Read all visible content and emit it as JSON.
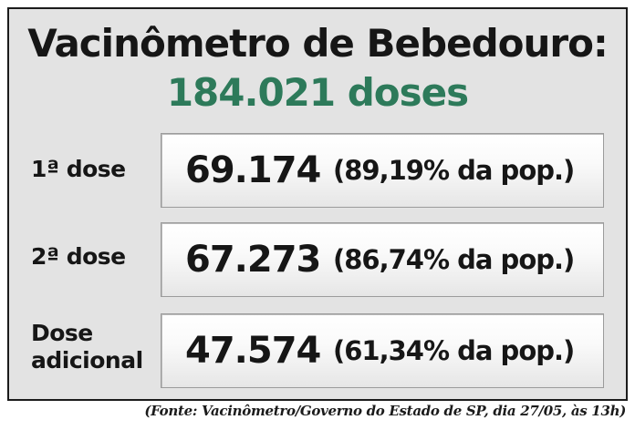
{
  "headline": "Vacinômetro de Bebedouro:",
  "total": "184.021 doses",
  "rows": [
    {
      "label_line1": "1ª dose",
      "label_line2": "",
      "value": "69.174",
      "percent": "(89,19% da pop.)"
    },
    {
      "label_line1": "2ª dose",
      "label_line2": "",
      "value": "67.273",
      "percent": "(86,74% da pop.)"
    },
    {
      "label_line1": "Dose",
      "label_line2": "adicional",
      "value": "47.574",
      "percent": "(61,34% da pop.)"
    }
  ],
  "source": "(Fonte: Vacinômetro/Governo do Estado de SP, dia 27/05, às 13h)",
  "colors": {
    "background": "#e3e3e3",
    "accent_green": "#2d7a5a",
    "text": "#161616"
  }
}
